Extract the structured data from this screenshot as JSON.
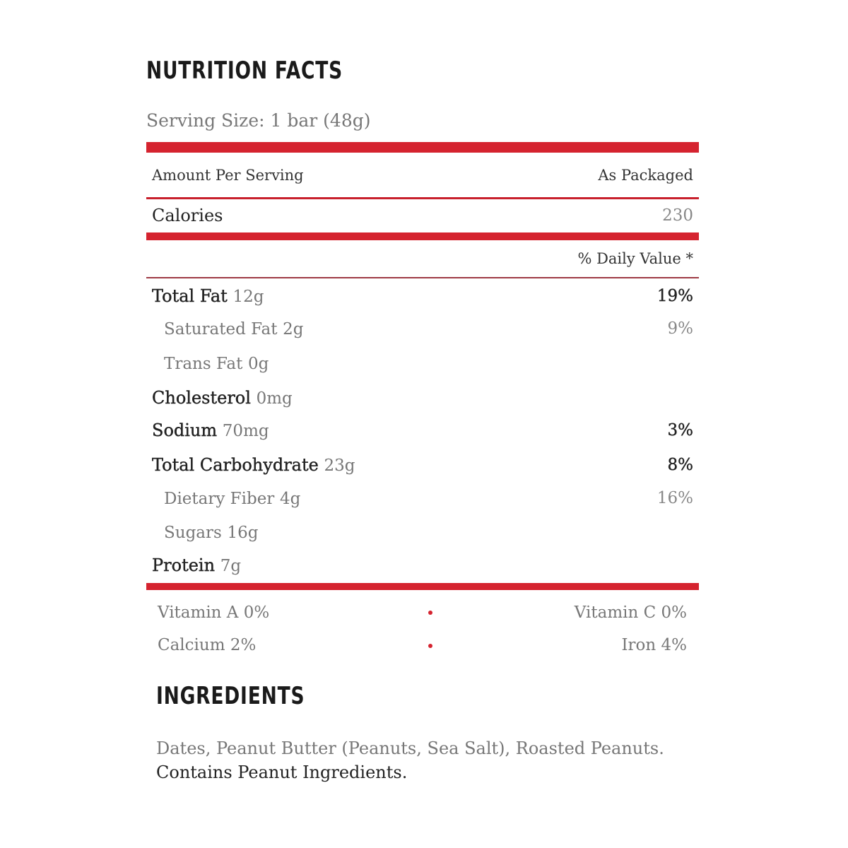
{
  "title": "NUTRITION FACTS",
  "serving_size": "Serving Size: 1 bar (48g)",
  "header": {
    "amount_per_serving": "Amount Per Serving",
    "as_packaged": "As Packaged"
  },
  "calories": {
    "label": "Calories",
    "value": "230"
  },
  "daily_value_header": "% Daily Value *",
  "nutrients": [
    {
      "name": "Total Fat",
      "amount": "12g",
      "dv": "19%",
      "bold": true
    },
    {
      "name": "Saturated Fat",
      "amount": "2g",
      "dv": "9%",
      "sub": true
    },
    {
      "name": "Trans Fat",
      "amount": "0g",
      "dv": "",
      "sub": true
    },
    {
      "name": "Cholesterol",
      "amount": "0mg",
      "dv": "",
      "bold": true
    },
    {
      "name": "Sodium",
      "amount": "70mg",
      "dv": "3%",
      "bold": true
    },
    {
      "name": "Total Carbohydrate",
      "amount": "23g",
      "dv": "8%",
      "bold": true
    },
    {
      "name": "Dietary Fiber",
      "amount": " 4g",
      "dv": "16%",
      "sub": true
    },
    {
      "name": "Sugars",
      "amount": "16g",
      "dv": "",
      "sub": true
    },
    {
      "name": "Protein",
      "amount": "7g",
      "dv": "",
      "bold": true
    }
  ],
  "vitamins": [
    {
      "left": "Vitamin A  0%",
      "right": "Vitamin C  0%"
    },
    {
      "left": "Calcium  2%",
      "right": "Iron  4%"
    }
  ],
  "ingredients": {
    "title": "INGREDIENTS",
    "text": "Dates, Peanut Butter (Peanuts, Sea Salt), Roasted Peanuts.",
    "allergen": "Contains Peanut Ingredients."
  },
  "colors": {
    "accent": "#d5232f"
  }
}
